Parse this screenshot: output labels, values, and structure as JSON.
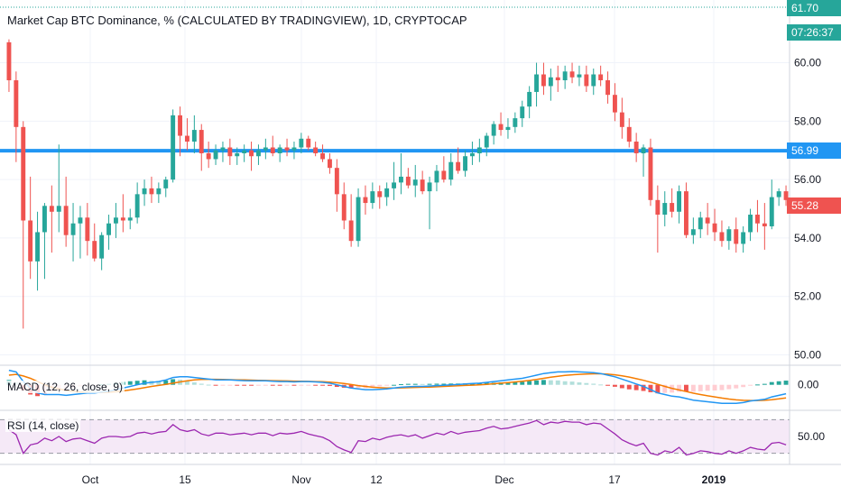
{
  "chart_data": {
    "type": "candlestick",
    "title": "Market Cap BTC Dominance, % (CALCULATED BY TRADINGVIEW), 1D, CRYPTOCAP",
    "ylim": [
      49.8,
      61.9
    ],
    "y_ticks": [
      "60.00",
      "58.00",
      "56.00",
      "54.00",
      "52.00",
      "50.00"
    ],
    "x_ticks": [
      "Oct",
      "15",
      "Nov",
      "12",
      "Dec",
      "17",
      "2019"
    ],
    "price_tag": {
      "value": "55.28",
      "color": "#ef5350"
    },
    "top_tag": {
      "value": "61.70",
      "color": "#26a69a"
    },
    "time_tag": {
      "value": "07:26:37",
      "color": "#26a69a"
    },
    "horizontal_line": {
      "value": "56.99",
      "color": "#2196f3"
    },
    "candles": [
      [
        60.7,
        60.8,
        59.0,
        59.4
      ],
      [
        59.4,
        59.7,
        56.6,
        57.8
      ],
      [
        57.8,
        58.0,
        50.9,
        54.6
      ],
      [
        54.6,
        56.1,
        52.6,
        53.2
      ],
      [
        53.2,
        54.9,
        52.2,
        54.2
      ],
      [
        54.2,
        55.2,
        52.6,
        55.1
      ],
      [
        55.1,
        55.8,
        53.5,
        54.9
      ],
      [
        54.9,
        57.2,
        54.2,
        55.1
      ],
      [
        55.1,
        56.1,
        53.7,
        54.1
      ],
      [
        54.1,
        55.2,
        53.2,
        54.5
      ],
      [
        54.5,
        55.1,
        53.3,
        54.7
      ],
      [
        54.7,
        55.2,
        53.4,
        53.9
      ],
      [
        53.9,
        54.5,
        53.2,
        53.3
      ],
      [
        53.3,
        54.2,
        52.9,
        54.1
      ],
      [
        54.1,
        54.8,
        53.6,
        54.5
      ],
      [
        54.5,
        55.2,
        54.0,
        54.7
      ],
      [
        54.7,
        55.5,
        54.2,
        54.6
      ],
      [
        54.6,
        55.0,
        54.3,
        54.7
      ],
      [
        54.7,
        55.9,
        54.5,
        55.5
      ],
      [
        55.5,
        56.0,
        55.1,
        55.7
      ],
      [
        55.7,
        56.1,
        55.2,
        55.5
      ],
      [
        55.5,
        55.9,
        55.2,
        55.7
      ],
      [
        55.7,
        56.1,
        55.4,
        56.0
      ],
      [
        56.0,
        58.4,
        55.9,
        58.2
      ],
      [
        58.2,
        58.5,
        56.8,
        57.5
      ],
      [
        57.5,
        58.1,
        57.0,
        57.3
      ],
      [
        57.3,
        58.2,
        56.9,
        57.7
      ],
      [
        57.7,
        57.9,
        56.3,
        56.9
      ],
      [
        56.9,
        57.3,
        56.4,
        56.7
      ],
      [
        56.7,
        57.2,
        56.5,
        57.0
      ],
      [
        57.0,
        57.3,
        56.6,
        57.1
      ],
      [
        57.1,
        57.4,
        56.5,
        56.8
      ],
      [
        56.8,
        57.1,
        56.5,
        56.9
      ],
      [
        56.9,
        57.2,
        56.6,
        57.0
      ],
      [
        57.0,
        57.3,
        56.3,
        56.8
      ],
      [
        56.8,
        57.2,
        56.5,
        57.0
      ],
      [
        57.0,
        57.4,
        56.7,
        57.1
      ],
      [
        57.1,
        57.5,
        56.8,
        56.9
      ],
      [
        56.9,
        57.2,
        56.6,
        57.1
      ],
      [
        57.1,
        57.4,
        56.8,
        57.0
      ],
      [
        57.0,
        57.3,
        56.7,
        57.1
      ],
      [
        57.1,
        57.6,
        56.9,
        57.4
      ],
      [
        57.4,
        57.5,
        57.0,
        57.1
      ],
      [
        57.1,
        57.3,
        56.8,
        56.9
      ],
      [
        56.9,
        57.2,
        56.6,
        56.7
      ],
      [
        56.7,
        56.9,
        56.2,
        56.4
      ],
      [
        56.4,
        56.7,
        54.9,
        55.5
      ],
      [
        55.5,
        55.9,
        54.3,
        54.6
      ],
      [
        54.6,
        55.5,
        53.7,
        53.9
      ],
      [
        53.9,
        55.7,
        53.7,
        55.4
      ],
      [
        55.4,
        55.8,
        54.8,
        55.2
      ],
      [
        55.2,
        55.9,
        55.0,
        55.6
      ],
      [
        55.6,
        55.8,
        55.0,
        55.4
      ],
      [
        55.4,
        55.9,
        55.1,
        55.7
      ],
      [
        55.7,
        56.6,
        55.3,
        55.9
      ],
      [
        55.9,
        56.9,
        55.5,
        56.1
      ],
      [
        56.1,
        56.4,
        55.7,
        55.8
      ],
      [
        55.8,
        56.5,
        55.4,
        56.0
      ],
      [
        56.0,
        56.3,
        55.5,
        55.6
      ],
      [
        55.6,
        56.1,
        54.3,
        55.9
      ],
      [
        55.9,
        56.5,
        55.6,
        56.3
      ],
      [
        56.3,
        56.8,
        55.9,
        56.0
      ],
      [
        56.0,
        56.9,
        55.8,
        56.6
      ],
      [
        56.6,
        57.1,
        56.2,
        56.3
      ],
      [
        56.3,
        57.0,
        56.1,
        56.8
      ],
      [
        56.8,
        57.3,
        56.5,
        56.9
      ],
      [
        56.9,
        57.4,
        56.6,
        57.1
      ],
      [
        57.1,
        57.6,
        56.8,
        57.5
      ],
      [
        57.5,
        58.0,
        57.2,
        57.9
      ],
      [
        57.9,
        58.3,
        57.5,
        57.7
      ],
      [
        57.7,
        58.1,
        57.4,
        57.8
      ],
      [
        57.8,
        58.3,
        57.6,
        58.1
      ],
      [
        58.1,
        58.7,
        57.8,
        58.5
      ],
      [
        58.5,
        59.2,
        58.1,
        59.0
      ],
      [
        59.0,
        60.0,
        58.5,
        59.6
      ],
      [
        59.6,
        60.0,
        58.9,
        59.2
      ],
      [
        59.2,
        59.8,
        58.7,
        59.5
      ],
      [
        59.5,
        59.9,
        59.0,
        59.4
      ],
      [
        59.4,
        59.9,
        59.1,
        59.7
      ],
      [
        59.7,
        60.0,
        59.3,
        59.5
      ],
      [
        59.5,
        59.9,
        59.2,
        59.6
      ],
      [
        59.6,
        59.9,
        59.0,
        59.2
      ],
      [
        59.2,
        59.8,
        58.9,
        59.6
      ],
      [
        59.6,
        59.9,
        59.2,
        59.4
      ],
      [
        59.4,
        59.7,
        58.6,
        58.9
      ],
      [
        58.9,
        59.3,
        58.0,
        58.3
      ],
      [
        58.3,
        58.8,
        57.4,
        57.8
      ],
      [
        57.8,
        58.1,
        57.1,
        57.3
      ],
      [
        57.3,
        57.6,
        56.6,
        56.9
      ],
      [
        56.9,
        57.2,
        56.1,
        57.1
      ],
      [
        57.1,
        57.4,
        55.1,
        55.3
      ],
      [
        55.3,
        55.8,
        53.5,
        54.8
      ],
      [
        54.8,
        55.6,
        54.4,
        55.2
      ],
      [
        55.2,
        55.7,
        54.7,
        54.9
      ],
      [
        54.9,
        55.8,
        54.5,
        55.6
      ],
      [
        55.6,
        55.9,
        54.0,
        54.1
      ],
      [
        54.1,
        54.7,
        53.8,
        54.3
      ],
      [
        54.3,
        54.9,
        54.0,
        54.7
      ],
      [
        54.7,
        55.2,
        54.1,
        54.5
      ],
      [
        54.5,
        55.0,
        53.9,
        54.2
      ],
      [
        54.2,
        54.6,
        53.7,
        53.9
      ],
      [
        53.9,
        54.4,
        53.6,
        54.3
      ],
      [
        54.3,
        54.7,
        53.5,
        53.8
      ],
      [
        53.8,
        54.4,
        53.5,
        54.2
      ],
      [
        54.2,
        55.0,
        53.9,
        54.8
      ],
      [
        54.8,
        55.3,
        54.2,
        54.5
      ],
      [
        54.5,
        55.2,
        53.6,
        54.4
      ],
      [
        54.4,
        56.0,
        54.3,
        55.4
      ],
      [
        55.4,
        55.7,
        55.1,
        55.6
      ],
      [
        55.6,
        55.8,
        55.1,
        55.3
      ]
    ],
    "macd": {
      "label": "MACD (12, 26, close, 9)",
      "tag": "0.00",
      "macd_color": "#2196f3",
      "signal_color": "#f57c00",
      "macd_line": [
        0.9,
        0.8,
        0.2,
        -0.2,
        -0.5,
        -0.6,
        -0.6,
        -0.6,
        -0.65,
        -0.6,
        -0.55,
        -0.5,
        -0.5,
        -0.45,
        -0.4,
        -0.3,
        -0.2,
        -0.1,
        0.0,
        0.1,
        0.15,
        0.2,
        0.3,
        0.45,
        0.5,
        0.5,
        0.45,
        0.4,
        0.35,
        0.3,
        0.3,
        0.3,
        0.28,
        0.26,
        0.25,
        0.25,
        0.25,
        0.22,
        0.2,
        0.2,
        0.18,
        0.2,
        0.2,
        0.18,
        0.15,
        0.1,
        0.0,
        -0.1,
        -0.2,
        -0.25,
        -0.3,
        -0.3,
        -0.28,
        -0.25,
        -0.2,
        -0.15,
        -0.12,
        -0.1,
        -0.1,
        -0.08,
        -0.05,
        -0.03,
        0.0,
        0.02,
        0.05,
        0.08,
        0.1,
        0.15,
        0.2,
        0.25,
        0.3,
        0.35,
        0.4,
        0.5,
        0.6,
        0.7,
        0.75,
        0.8,
        0.8,
        0.82,
        0.8,
        0.78,
        0.75,
        0.7,
        0.6,
        0.5,
        0.35,
        0.2,
        0.05,
        -0.1,
        -0.3,
        -0.5,
        -0.6,
        -0.7,
        -0.75,
        -0.85,
        -0.95,
        -1.0,
        -1.05,
        -1.1,
        -1.15,
        -1.15,
        -1.15,
        -1.1,
        -1.0,
        -0.95,
        -0.9,
        -0.75,
        -0.65,
        -0.55
      ],
      "signal_line": [
        0.6,
        0.65,
        0.55,
        0.4,
        0.2,
        0.0,
        -0.15,
        -0.25,
        -0.35,
        -0.4,
        -0.45,
        -0.47,
        -0.48,
        -0.48,
        -0.46,
        -0.43,
        -0.38,
        -0.32,
        -0.25,
        -0.18,
        -0.1,
        -0.04,
        0.03,
        0.1,
        0.18,
        0.25,
        0.3,
        0.33,
        0.34,
        0.34,
        0.33,
        0.32,
        0.31,
        0.3,
        0.29,
        0.28,
        0.27,
        0.26,
        0.25,
        0.24,
        0.23,
        0.22,
        0.21,
        0.2,
        0.19,
        0.17,
        0.13,
        0.08,
        0.02,
        -0.05,
        -0.1,
        -0.15,
        -0.18,
        -0.2,
        -0.2,
        -0.19,
        -0.18,
        -0.16,
        -0.15,
        -0.14,
        -0.12,
        -0.1,
        -0.08,
        -0.06,
        -0.04,
        -0.02,
        0.0,
        0.03,
        0.07,
        0.1,
        0.14,
        0.18,
        0.22,
        0.27,
        0.33,
        0.4,
        0.47,
        0.53,
        0.58,
        0.62,
        0.65,
        0.67,
        0.68,
        0.68,
        0.66,
        0.62,
        0.56,
        0.48,
        0.38,
        0.28,
        0.16,
        0.03,
        -0.1,
        -0.22,
        -0.32,
        -0.42,
        -0.52,
        -0.6,
        -0.68,
        -0.75,
        -0.82,
        -0.88,
        -0.93,
        -0.96,
        -0.97,
        -0.97,
        -0.96,
        -0.92,
        -0.87,
        -0.81
      ]
    },
    "rsi": {
      "label": "RSI (14, close)",
      "tag": "50.00",
      "color": "#9c27b0",
      "band_color": "rgba(156,39,176,0.10)",
      "values": [
        58,
        52,
        30,
        40,
        42,
        48,
        45,
        50,
        44,
        47,
        48,
        45,
        42,
        48,
        50,
        50,
        49,
        50,
        54,
        55,
        53,
        55,
        56,
        64,
        58,
        56,
        58,
        53,
        51,
        54,
        54,
        52,
        53,
        54,
        52,
        54,
        54,
        51,
        54,
        53,
        54,
        56,
        53,
        51,
        49,
        45,
        38,
        34,
        31,
        45,
        44,
        48,
        46,
        49,
        51,
        52,
        50,
        52,
        48,
        51,
        54,
        52,
        56,
        53,
        55,
        56,
        57,
        60,
        62,
        59,
        60,
        62,
        64,
        66,
        69,
        64,
        67,
        66,
        68,
        67,
        67,
        64,
        66,
        65,
        59,
        53,
        46,
        42,
        39,
        42,
        30,
        28,
        33,
        31,
        37,
        28,
        30,
        33,
        32,
        30,
        29,
        33,
        30,
        33,
        37,
        35,
        34,
        42,
        43,
        40
      ]
    }
  }
}
